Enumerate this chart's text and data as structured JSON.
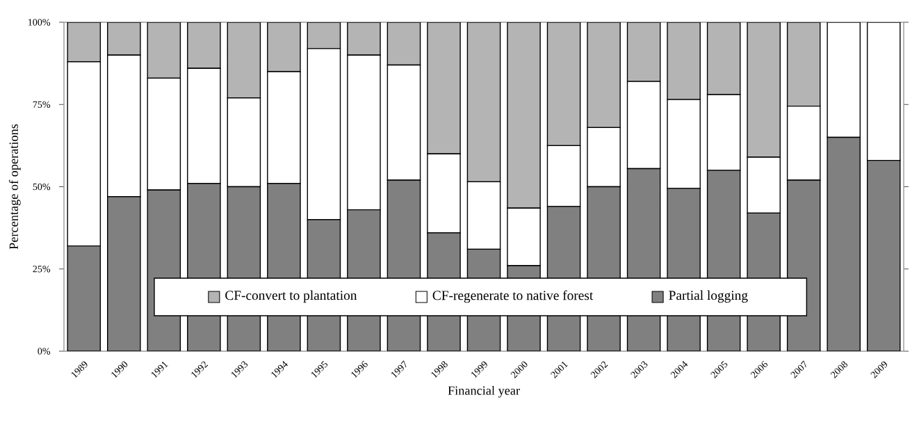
{
  "chart_data": {
    "type": "bar",
    "stacked": true,
    "xlabel": "Financial year",
    "ylabel": "Percentage of operations",
    "categories": [
      "1989",
      "1990",
      "1991",
      "1992",
      "1993",
      "1994",
      "1995",
      "1996",
      "1997",
      "1998",
      "1999",
      "2000",
      "2001",
      "2002",
      "2003",
      "2004",
      "2005",
      "2006",
      "2007",
      "2008",
      "2009"
    ],
    "series": [
      {
        "name": "Partial logging",
        "color": "#808080",
        "values": [
          32,
          47,
          49,
          51,
          50,
          51,
          40,
          43,
          52,
          36,
          31,
          26,
          44,
          50,
          55.5,
          49.5,
          55,
          42,
          52,
          65,
          58
        ]
      },
      {
        "name": "CF-regenerate to native forest",
        "color": "#ffffff",
        "values": [
          56,
          43,
          34,
          35,
          27,
          34,
          52,
          47,
          35,
          24,
          20.5,
          17.5,
          18.5,
          18,
          26.5,
          27,
          23,
          17,
          22.5,
          35,
          42
        ]
      },
      {
        "name": "CF-convert to plantation",
        "color": "#b4b4b4",
        "values": [
          12,
          10,
          17,
          14,
          23,
          15,
          8,
          10,
          13,
          40,
          48.5,
          56.5,
          37.5,
          32,
          18,
          23.5,
          22,
          41,
          25.5,
          0,
          0
        ]
      }
    ],
    "ylim": [
      0,
      100
    ],
    "yticks": [
      {
        "value": 0,
        "label": "0%"
      },
      {
        "value": 25,
        "label": "25%"
      },
      {
        "value": 50,
        "label": "50%"
      },
      {
        "value": 75,
        "label": "75%"
      },
      {
        "value": 100,
        "label": "100%"
      }
    ],
    "legend": "bottom"
  }
}
